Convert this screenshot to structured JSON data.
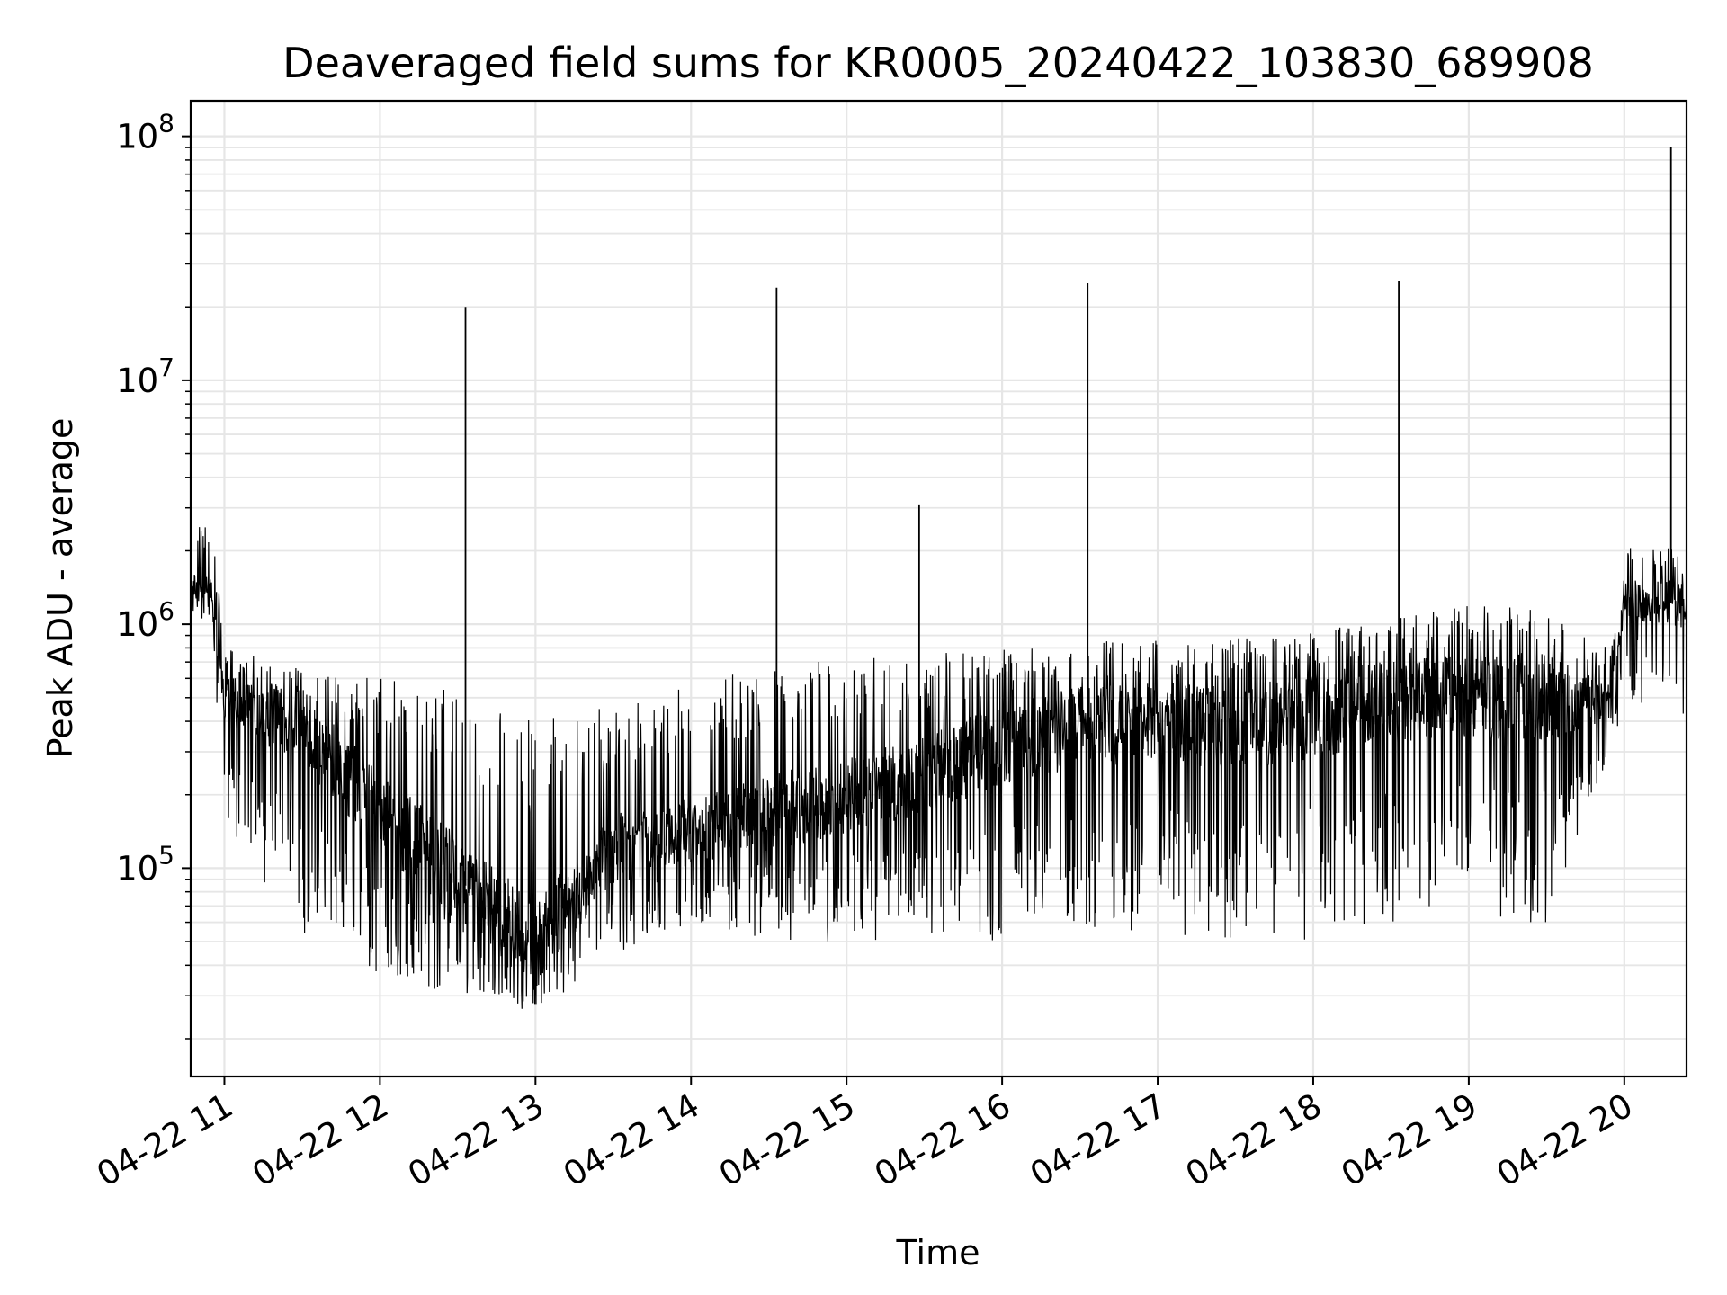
{
  "chart_data": {
    "type": "line",
    "title": "Deaveraged field sums for KR0005_20240422_103830_689908",
    "xlabel": "Time",
    "ylabel": "Peak ADU - average",
    "yscale": "log",
    "ylim": [
      14000,
      140000000
    ],
    "xlim": [
      "2024-04-22 10:47",
      "2024-04-22 20:24"
    ],
    "grid": true,
    "grid_minor": true,
    "x_ticks": [
      "04-22 11",
      "04-22 12",
      "04-22 13",
      "04-22 14",
      "04-22 15",
      "04-22 16",
      "04-22 17",
      "04-22 18",
      "04-22 19",
      "04-22 20"
    ],
    "x_tick_times": [
      "2024-04-22 11:00",
      "2024-04-22 12:00",
      "2024-04-22 13:00",
      "2024-04-22 14:00",
      "2024-04-22 15:00",
      "2024-04-22 16:00",
      "2024-04-22 17:00",
      "2024-04-22 18:00",
      "2024-04-22 19:00",
      "2024-04-22 20:00"
    ],
    "y_ticks": [
      {
        "value": 100000,
        "base": "10",
        "exp": "5"
      },
      {
        "value": 1000000,
        "base": "10",
        "exp": "6"
      },
      {
        "value": 10000000,
        "base": "10",
        "exp": "7"
      },
      {
        "value": 100000000,
        "base": "10",
        "exp": "8"
      }
    ],
    "line_color": "#000000",
    "series": [
      {
        "x": [
          "2024-04-22 10:47",
          "2024-04-22 10:55",
          "2024-04-22 11:00",
          "2024-04-22 11:30",
          "2024-04-22 12:00",
          "2024-04-22 12:30",
          "2024-04-22 13:00",
          "2024-04-22 13:30",
          "2024-04-22 14:00",
          "2024-04-22 14:30",
          "2024-04-22 15:00",
          "2024-04-22 15:30",
          "2024-04-22 16:00",
          "2024-04-22 16:30",
          "2024-04-22 17:00",
          "2024-04-22 17:30",
          "2024-04-22 18:00",
          "2024-04-22 18:30",
          "2024-04-22 19:00",
          "2024-04-22 19:30",
          "2024-04-22 19:55",
          "2024-04-22 20:00",
          "2024-04-22 20:24"
        ],
        "baseline": [
          1500000,
          1400000,
          500000,
          380000,
          170000,
          90000,
          50000,
          120000,
          140000,
          170000,
          200000,
          240000,
          320000,
          380000,
          400000,
          380000,
          420000,
          480000,
          520000,
          500000,
          480000,
          1300000,
          1200000
        ],
        "upper_envelope": [
          2600000,
          2800000,
          800000,
          650000,
          600000,
          550000,
          400000,
          480000,
          560000,
          680000,
          720000,
          750000,
          800000,
          850000,
          860000,
          880000,
          950000,
          1050000,
          1200000,
          1150000,
          800000,
          2200000,
          2000000
        ],
        "lower_envelope": [
          1100000,
          1000000,
          150000,
          50000,
          35000,
          30000,
          25000,
          45000,
          55000,
          50000,
          50000,
          50000,
          50000,
          55000,
          55000,
          50000,
          50000,
          60000,
          60000,
          55000,
          250000,
          500000,
          400000
        ]
      }
    ],
    "spikes": [
      {
        "x": "2024-04-22 12:33",
        "y": 20000000
      },
      {
        "x": "2024-04-22 14:33",
        "y": 24000000
      },
      {
        "x": "2024-04-22 15:28",
        "y": 3100000
      },
      {
        "x": "2024-04-22 16:33",
        "y": 25000000
      },
      {
        "x": "2024-04-22 18:33",
        "y": 25500000
      },
      {
        "x": "2024-04-22 20:18",
        "y": 90000000
      }
    ]
  }
}
